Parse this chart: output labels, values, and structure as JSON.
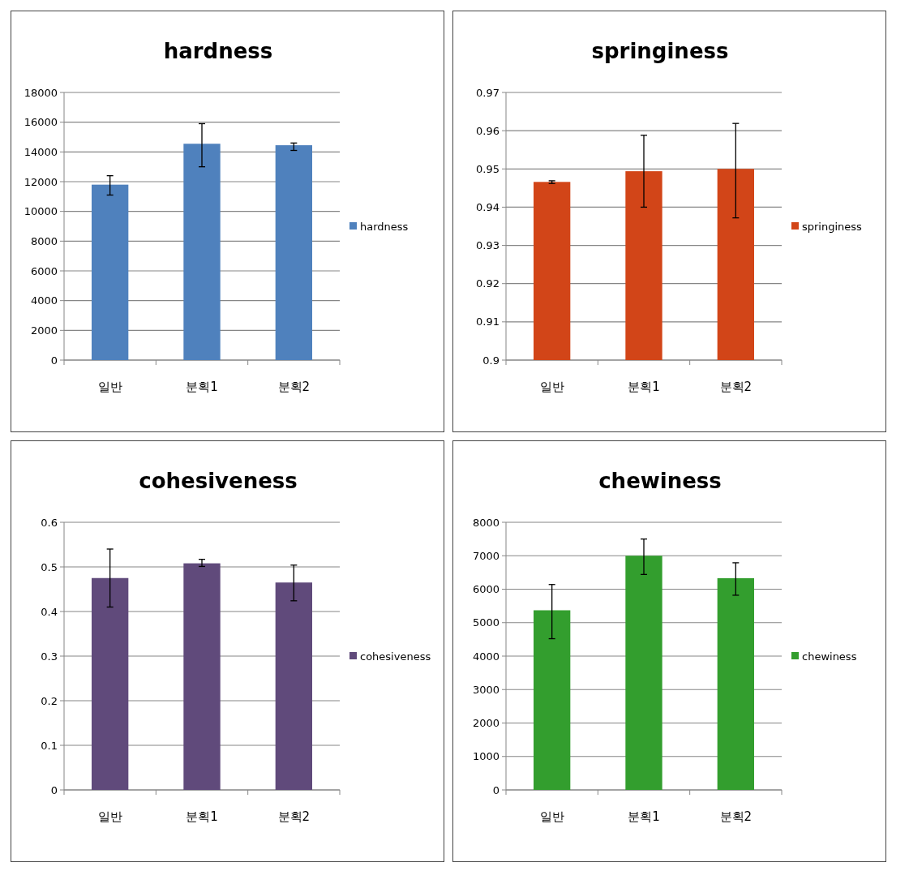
{
  "chart_data": [
    {
      "type": "bar",
      "title": "hardness",
      "categories": [
        "일반",
        "분획1",
        "분획2"
      ],
      "series": [
        {
          "name": "hardness",
          "color": "#4f81bd",
          "values": [
            11800,
            14550,
            14450
          ],
          "errors": [
            [
              11100,
              12400
            ],
            [
              13000,
              15900
            ],
            [
              14100,
              14600
            ]
          ]
        }
      ],
      "ylim": [
        0,
        18000
      ],
      "yticks": [
        0,
        2000,
        4000,
        6000,
        8000,
        10000,
        12000,
        14000,
        16000,
        18000
      ],
      "grid": "y",
      "legend": "right"
    },
    {
      "type": "bar",
      "title": "springiness",
      "categories": [
        "일반",
        "분획1",
        "분획2"
      ],
      "series": [
        {
          "name": "springiness",
          "color": "#d24518",
          "values": [
            0.9466,
            0.9494,
            0.95
          ],
          "errors": [
            [
              0.9462,
              0.9469
            ],
            [
              0.94,
              0.9588
            ],
            [
              0.9372,
              0.9619
            ]
          ]
        }
      ],
      "ylim": [
        0.9,
        0.97
      ],
      "yticks": [
        0.9,
        0.91,
        0.92,
        0.93,
        0.94,
        0.95,
        0.96,
        0.97
      ],
      "grid": "y",
      "legend": "right"
    },
    {
      "type": "bar",
      "title": "cohesiveness",
      "categories": [
        "일반",
        "분획1",
        "분획2"
      ],
      "series": [
        {
          "name": "cohesiveness",
          "color": "#604a7b",
          "values": [
            0.475,
            0.508,
            0.465
          ],
          "errors": [
            [
              0.41,
              0.54
            ],
            [
              0.501,
              0.517
            ],
            [
              0.424,
              0.504
            ]
          ]
        }
      ],
      "ylim": [
        0,
        0.6
      ],
      "yticks": [
        0,
        0.1,
        0.2,
        0.3,
        0.4,
        0.5,
        0.6
      ],
      "grid": "y",
      "legend": "right"
    },
    {
      "type": "bar",
      "title": "chewiness",
      "categories": [
        "일반",
        "분획1",
        "분획2"
      ],
      "series": [
        {
          "name": "chewiness",
          "color": "#339e2e",
          "values": [
            5370,
            7000,
            6330
          ],
          "errors": [
            [
              4520,
              6140
            ],
            [
              6440,
              7500
            ],
            [
              5820,
              6790
            ]
          ]
        }
      ],
      "ylim": [
        0,
        8000
      ],
      "yticks": [
        0,
        1000,
        2000,
        3000,
        4000,
        5000,
        6000,
        7000,
        8000
      ],
      "grid": "y",
      "legend": "right"
    }
  ]
}
